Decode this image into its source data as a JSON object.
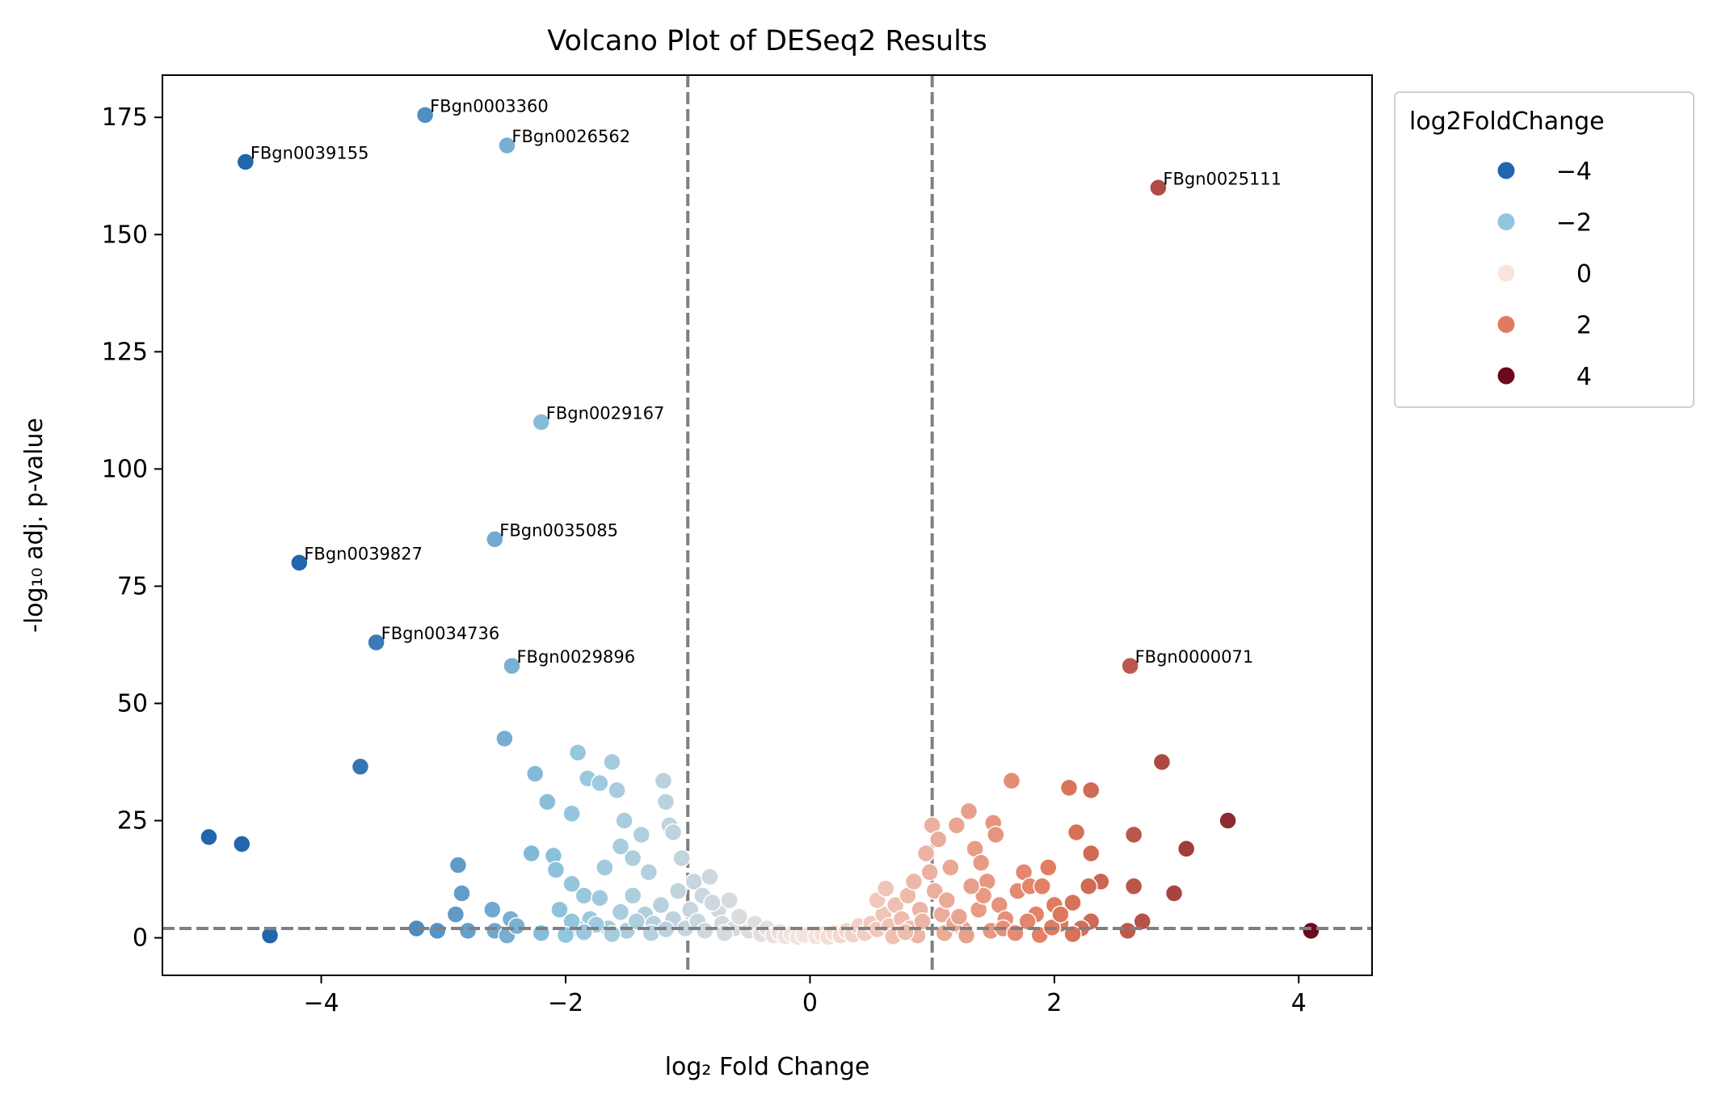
{
  "chart_data": {
    "type": "scatter",
    "title": "Volcano Plot of DESeq2 Results",
    "xlabel": "log₂ Fold Change",
    "ylabel": "-log₁₀ adj. p-value",
    "xlim": [
      -5.3,
      4.6
    ],
    "ylim": [
      -8,
      184
    ],
    "xticks": [
      -4,
      -2,
      0,
      2,
      4
    ],
    "xtick_labels": [
      "−4",
      "−2",
      "0",
      "2",
      "4"
    ],
    "yticks": [
      0,
      25,
      50,
      75,
      100,
      125,
      150,
      175
    ],
    "ytick_labels": [
      "0",
      "25",
      "50",
      "75",
      "100",
      "125",
      "150",
      "175"
    ],
    "threshold_lines": {
      "vertical": [
        -1,
        1
      ],
      "horizontal": [
        2
      ]
    },
    "colormap": "RdBu_r",
    "legend": {
      "title": "log2FoldChange",
      "position": "outside-right",
      "entries": [
        {
          "label": "−4",
          "value": -4,
          "color": "#2166ac"
        },
        {
          "label": "−2",
          "value": -2,
          "color": "#92c5de"
        },
        {
          "label": "0",
          "value": 0,
          "color": "#f7e5de"
        },
        {
          "label": "2",
          "value": 2,
          "color": "#e07b5f"
        },
        {
          "label": "4",
          "value": 4,
          "color": "#6b0a1f"
        }
      ]
    },
    "line_color": "#808080",
    "grid": false,
    "labeled_points": [
      {
        "gene": "FBgn0003360",
        "x": -3.15,
        "y": 175.5
      },
      {
        "gene": "FBgn0026562",
        "x": -2.48,
        "y": 169
      },
      {
        "gene": "FBgn0039155",
        "x": -4.62,
        "y": 165.5
      },
      {
        "gene": "FBgn0025111",
        "x": 2.85,
        "y": 160
      },
      {
        "gene": "FBgn0029167",
        "x": -2.2,
        "y": 110
      },
      {
        "gene": "FBgn0035085",
        "x": -2.58,
        "y": 85
      },
      {
        "gene": "FBgn0039827",
        "x": -4.18,
        "y": 80
      },
      {
        "gene": "FBgn0034736",
        "x": -3.55,
        "y": 63
      },
      {
        "gene": "FBgn0029896",
        "x": -2.44,
        "y": 58
      },
      {
        "gene": "FBgn0000071",
        "x": 2.62,
        "y": 58
      }
    ],
    "points": [
      [
        -3.68,
        36.5
      ],
      [
        -4.92,
        21.5
      ],
      [
        -4.65,
        20
      ],
      [
        -4.42,
        0.5
      ],
      [
        -2.5,
        42.5
      ],
      [
        -2.25,
        35
      ],
      [
        -2.15,
        29
      ],
      [
        -1.95,
        26.5
      ],
      [
        -2.28,
        18
      ],
      [
        -2.1,
        17.5
      ],
      [
        -2.08,
        14.5
      ],
      [
        -1.95,
        11.5
      ],
      [
        -1.85,
        9
      ],
      [
        -2.05,
        6
      ],
      [
        -2.2,
        1
      ],
      [
        -3.22,
        2
      ],
      [
        -3.05,
        1.5
      ],
      [
        -2.88,
        15.5
      ],
      [
        -2.85,
        9.5
      ],
      [
        -2.9,
        5
      ],
      [
        -2.8,
        1.5
      ],
      [
        -2.6,
        6
      ],
      [
        -2.58,
        1.5
      ],
      [
        -2.45,
        4
      ],
      [
        -2.48,
        0.5
      ],
      [
        -2.4,
        2.5
      ],
      [
        -1.9,
        39.5
      ],
      [
        -1.82,
        34
      ],
      [
        -1.72,
        33
      ],
      [
        -1.62,
        37.5
      ],
      [
        -1.58,
        31.5
      ],
      [
        -1.52,
        25
      ],
      [
        -1.55,
        19.5
      ],
      [
        -1.45,
        17
      ],
      [
        -1.68,
        15
      ],
      [
        -1.72,
        8.5
      ],
      [
        -1.8,
        4
      ],
      [
        -1.65,
        2
      ],
      [
        -1.9,
        2
      ],
      [
        -1.45,
        9
      ],
      [
        -1.38,
        22
      ],
      [
        -1.32,
        14
      ],
      [
        -1.2,
        33.5
      ],
      [
        -1.18,
        29
      ],
      [
        -1.15,
        24
      ],
      [
        -1.12,
        22.5
      ],
      [
        -1.05,
        17
      ],
      [
        -0.95,
        12
      ],
      [
        -0.88,
        9
      ],
      [
        -0.82,
        13
      ],
      [
        -0.75,
        6
      ],
      [
        -0.72,
        3
      ],
      [
        -0.66,
        8
      ],
      [
        -0.62,
        2
      ],
      [
        -0.58,
        4.5
      ],
      [
        -0.5,
        1.5
      ],
      [
        -0.45,
        3
      ],
      [
        -0.4,
        0.8
      ],
      [
        -0.35,
        2
      ],
      [
        -0.3,
        0.5
      ],
      [
        -0.25,
        1.2
      ],
      [
        -0.2,
        0.3
      ],
      [
        -0.15,
        0.8
      ],
      [
        -0.1,
        0.2
      ],
      [
        -0.05,
        0.6
      ],
      [
        -1.35,
        5
      ],
      [
        -1.28,
        3
      ],
      [
        -1.22,
        7
      ],
      [
        -1.12,
        4
      ],
      [
        -1.08,
        10
      ],
      [
        -1.02,
        2
      ],
      [
        -0.98,
        6
      ],
      [
        -0.92,
        3.5
      ],
      [
        -0.86,
        1.5
      ],
      [
        -0.8,
        7.5
      ],
      [
        -0.7,
        1
      ],
      [
        -1.5,
        1.5
      ],
      [
        -1.42,
        3.5
      ],
      [
        -1.55,
        5.5
      ],
      [
        -1.62,
        0.8
      ],
      [
        -1.75,
        2.8
      ],
      [
        -1.85,
        1.2
      ],
      [
        -1.95,
        3.5
      ],
      [
        -2.0,
        0.6
      ],
      [
        -1.3,
        1
      ],
      [
        -1.18,
        1.8
      ],
      [
        0.05,
        0.3
      ],
      [
        0.1,
        0.8
      ],
      [
        0.15,
        0.2
      ],
      [
        0.2,
        1
      ],
      [
        0.25,
        0.5
      ],
      [
        0.3,
        1.5
      ],
      [
        0.35,
        0.7
      ],
      [
        0.4,
        2.5
      ],
      [
        0.45,
        1
      ],
      [
        0.5,
        3
      ],
      [
        0.55,
        1.8
      ],
      [
        0.6,
        5
      ],
      [
        0.65,
        2.5
      ],
      [
        0.7,
        7
      ],
      [
        0.75,
        4
      ],
      [
        0.8,
        9
      ],
      [
        0.85,
        12
      ],
      [
        0.9,
        6
      ],
      [
        0.95,
        18
      ],
      [
        0.98,
        14
      ],
      [
        1.0,
        24
      ],
      [
        1.02,
        10
      ],
      [
        1.05,
        21
      ],
      [
        1.08,
        5
      ],
      [
        1.12,
        8
      ],
      [
        1.15,
        15
      ],
      [
        1.2,
        24
      ],
      [
        1.25,
        2
      ],
      [
        1.3,
        27
      ],
      [
        1.35,
        19
      ],
      [
        1.4,
        16
      ],
      [
        1.45,
        12
      ],
      [
        1.5,
        24.5
      ],
      [
        1.52,
        22
      ],
      [
        1.55,
        7
      ],
      [
        1.6,
        4
      ],
      [
        1.65,
        33.5
      ],
      [
        1.7,
        10
      ],
      [
        1.75,
        14
      ],
      [
        1.8,
        11
      ],
      [
        1.85,
        5
      ],
      [
        1.9,
        11
      ],
      [
        1.95,
        15
      ],
      [
        2.0,
        7
      ],
      [
        2.05,
        3
      ],
      [
        0.55,
        8
      ],
      [
        0.62,
        10.5
      ],
      [
        0.72,
        0.8
      ],
      [
        0.82,
        2
      ],
      [
        0.88,
        0.5
      ],
      [
        0.92,
        3.5
      ],
      [
        1.1,
        1
      ],
      [
        1.18,
        3
      ],
      [
        1.28,
        0.5
      ],
      [
        1.38,
        6
      ],
      [
        1.48,
        1.5
      ],
      [
        1.58,
        2
      ],
      [
        1.68,
        1
      ],
      [
        1.78,
        3.5
      ],
      [
        1.88,
        0.6
      ],
      [
        1.98,
        2.2
      ],
      [
        1.42,
        9
      ],
      [
        1.32,
        11
      ],
      [
        1.22,
        4.5
      ],
      [
        0.68,
        0.3
      ],
      [
        0.78,
        1.2
      ],
      [
        2.12,
        32
      ],
      [
        2.3,
        31.5
      ],
      [
        2.18,
        22.5
      ],
      [
        2.3,
        18
      ],
      [
        2.38,
        12
      ],
      [
        2.28,
        11
      ],
      [
        2.15,
        7.5
      ],
      [
        2.05,
        5
      ],
      [
        2.3,
        3.5
      ],
      [
        2.22,
        2
      ],
      [
        2.15,
        0.8
      ],
      [
        2.6,
        1.5
      ],
      [
        2.72,
        3.5
      ],
      [
        2.65,
        11
      ],
      [
        2.65,
        22
      ],
      [
        2.88,
        37.5
      ],
      [
        2.98,
        9.5
      ],
      [
        3.08,
        19
      ],
      [
        3.42,
        25
      ],
      [
        4.1,
        1.5
      ]
    ]
  }
}
